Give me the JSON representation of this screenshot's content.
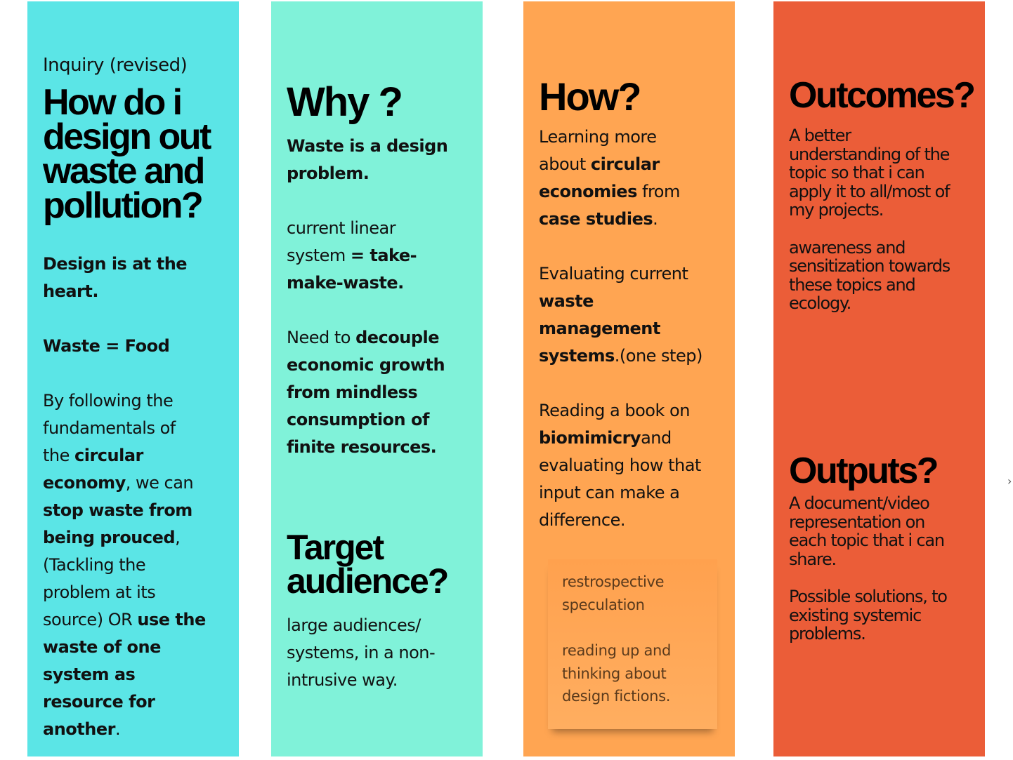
{
  "col1": {
    "subtitle": "Inquiry (revised)",
    "title_lines": [
      "How do i",
      "design out",
      "waste and",
      "pollution?"
    ],
    "p1": [
      "Design is at the",
      "heart."
    ],
    "p2": "Waste = Food",
    "p3": {
      "l1": "By following the",
      "l2": "fundamentals of",
      "l3a": "the ",
      "l3b": "circular",
      "l4a": "economy",
      "l4b": ", we can",
      "l5": "stop waste from",
      "l6a": "being prouced",
      "l6b": ",",
      "l7": "(Tackling the",
      "l8": "problem at its",
      "l9a": "source) OR ",
      "l9b": "use the",
      "l10": "waste of one",
      "l11": "system as",
      "l12": "resource for",
      "l13a": "another",
      "l13b": "."
    }
  },
  "col2": {
    "heading": "Why ?",
    "p1": [
      "Waste is a design",
      "problem."
    ],
    "p2": {
      "l1": "current linear",
      "l2a": "system ",
      "l2b": "= take-",
      "l3": "make-waste."
    },
    "p3": {
      "l1a": "Need to ",
      "l1b": "decouple",
      "l2": "economic growth",
      "l3": "from mindless",
      "l4": "consumption of",
      "l5": "finite resources."
    },
    "heading2_lines": [
      "Target",
      "audience?"
    ],
    "p4": [
      "large audiences/",
      "systems, in a non-",
      "intrusive way."
    ]
  },
  "col3": {
    "heading": "How?",
    "p1": {
      "l1": "Learning more",
      "l2a": "about ",
      "l2b": "circular",
      "l3a": "economies",
      "l3b": " from",
      "l4a": "case studies",
      "l4b": "."
    },
    "p2": {
      "l1": "Evaluating current",
      "l2": "waste",
      "l3": "management",
      "l4a": "systems",
      "l4b": ".(one step)"
    },
    "p3": {
      "l1": "Reading a book on",
      "l2a": "biomimicry",
      "l2b": "and",
      "l3": "evaluating how that",
      "l4": "input can make a",
      "l5": "difference."
    },
    "sticky": {
      "p1": [
        "restrospective",
        "speculation"
      ],
      "p2": [
        "reading up and",
        "thinking about",
        "design fictions."
      ]
    }
  },
  "col4": {
    "heading": "Outcomes?",
    "p1": [
      "A better",
      "understanding of the",
      "topic so that i can",
      "apply it to all/most of",
      "my projects."
    ],
    "p2": [
      "awareness and",
      "sensitization towards",
      "these topics and",
      "ecology."
    ],
    "heading2": "Outputs?",
    "p3": [
      "A document/video",
      "representation on",
      "each topic that i can",
      "share."
    ],
    "p4": [
      "Possible solutions, to",
      "existing systemic",
      "problems."
    ]
  },
  "colors": {
    "col1_bg": "#5be5e6",
    "col2_bg": "#80f2d9",
    "col3_bg": "#ffa552",
    "col4_bg": "#eb5d38",
    "sticky_bg": "#ffa85a"
  }
}
